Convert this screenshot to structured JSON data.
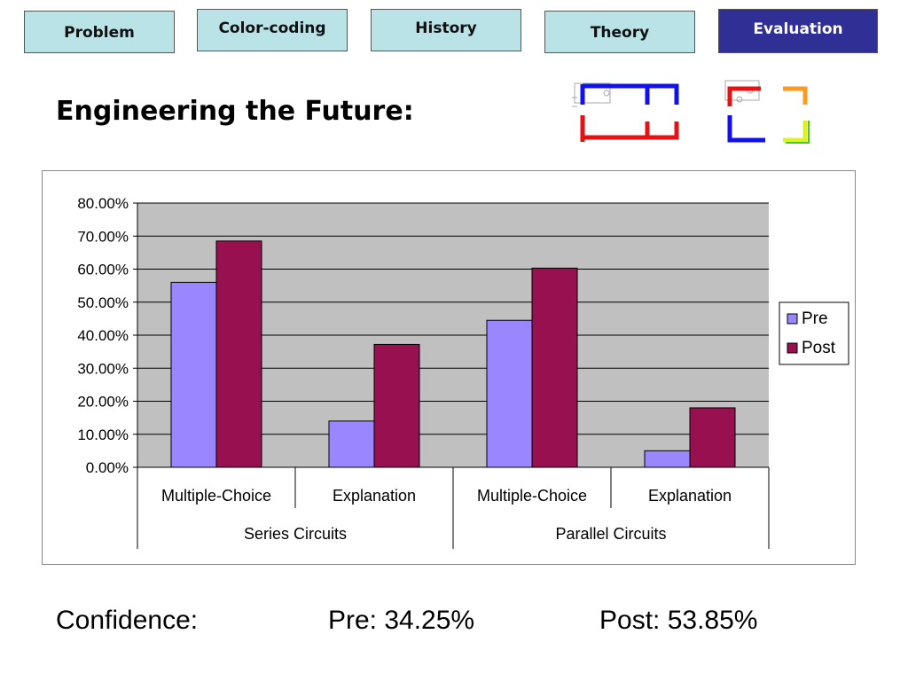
{
  "nav": {
    "tabs": [
      {
        "label": "Problem",
        "active": false
      },
      {
        "label": "Color-coding",
        "active": false
      },
      {
        "label": "History",
        "active": false
      },
      {
        "label": "Theory",
        "active": false
      },
      {
        "label": "Evaluation",
        "active": true
      }
    ]
  },
  "page_title": "Engineering the Future:",
  "colors": {
    "tab_light": "#b9e3e6",
    "tab_active": "#2f2f96",
    "plot_bg": "#c0c0c0",
    "pre": "#9a86ff",
    "post": "#991050"
  },
  "icons": [
    "series-circuit-icon",
    "parallel-circuit-icon"
  ],
  "chart_data": {
    "type": "bar",
    "categories": [
      "Multiple-Choice",
      "Explanation",
      "Multiple-Choice",
      "Explanation"
    ],
    "groups": [
      {
        "label": "Series Circuits",
        "categories": [
          0,
          1
        ]
      },
      {
        "label": "Parallel Circuits",
        "categories": [
          2,
          3
        ]
      }
    ],
    "series": [
      {
        "name": "Pre",
        "values": [
          56,
          14,
          44.5,
          5
        ],
        "color": "#9a86ff"
      },
      {
        "name": "Post",
        "values": [
          68.5,
          37.2,
          60.3,
          18
        ],
        "color": "#991050"
      }
    ],
    "ylim": [
      0,
      80
    ],
    "yticks": [
      "0.00%",
      "10.00%",
      "20.00%",
      "30.00%",
      "40.00%",
      "50.00%",
      "60.00%",
      "70.00%",
      "80.00%"
    ],
    "grid": true,
    "legend": "right"
  },
  "footer": {
    "label": "Confidence:",
    "pre": "Pre: 34.25%",
    "post": "Post: 53.85%"
  }
}
